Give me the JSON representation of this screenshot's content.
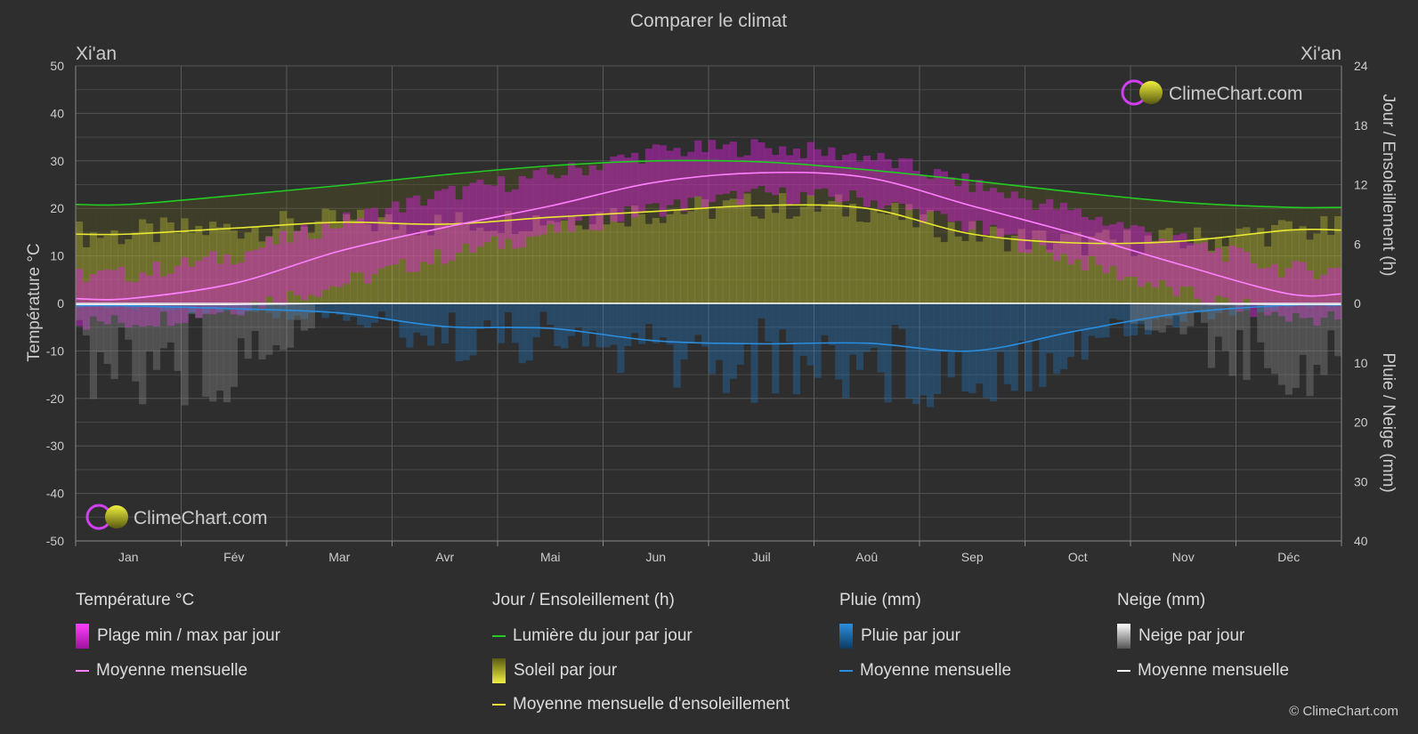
{
  "title": "Comparer le climat",
  "location_left": "Xi'an",
  "location_right": "Xi'an",
  "axes": {
    "left_label": "Température °C",
    "right_top_label": "Jour / Ensoleillement (h)",
    "right_bottom_label": "Pluie / Neige (mm)"
  },
  "watermark": "ClimeChart.com",
  "copyright": "© ClimeChart.com",
  "colors": {
    "background": "#2e2e2e",
    "temp_range": "#e020e0",
    "temp_mean": "#ff80ff",
    "daylight": "#22cc22",
    "sunshine": "#a8a830",
    "sunshine_mean": "#e8e830",
    "rain": "#1e78c8",
    "rain_mean": "#2a8ee0",
    "snow": "#909090",
    "snow_mean": "#ffffff",
    "watermark": "#2a9df4"
  },
  "legend": {
    "temp": {
      "title": "Température °C",
      "range": "Plage min / max par jour",
      "mean": "Moyenne mensuelle"
    },
    "sun": {
      "title": "Jour / Ensoleillement (h)",
      "daylight": "Lumière du jour par jour",
      "sunshine": "Soleil par jour",
      "sunshine_mean": "Moyenne mensuelle d'ensoleillement"
    },
    "rain": {
      "title": "Pluie (mm)",
      "daily": "Pluie par jour",
      "mean": "Moyenne mensuelle"
    },
    "snow": {
      "title": "Neige (mm)",
      "daily": "Neige par jour",
      "mean": "Moyenne mensuelle"
    }
  },
  "chart_data": {
    "type": "line",
    "title": "Comparer le climat",
    "months": [
      "Jan",
      "Fév",
      "Mar",
      "Avr",
      "Mai",
      "Jun",
      "Juil",
      "Aoû",
      "Sep",
      "Oct",
      "Nov",
      "Déc"
    ],
    "left_axis": {
      "label": "Température °C",
      "range": [
        -50,
        50
      ],
      "ticks": [
        50,
        40,
        30,
        20,
        10,
        0,
        -10,
        -20,
        -30,
        -40,
        -50
      ]
    },
    "right_axis_sun": {
      "label": "Jour / Ensoleillement (h)",
      "range": [
        0,
        24
      ],
      "ticks": [
        24,
        18,
        12,
        6,
        0
      ]
    },
    "right_axis_precip": {
      "label": "Pluie / Neige (mm)",
      "range": [
        0,
        40
      ],
      "ticks": [
        0,
        10,
        20,
        30,
        40
      ]
    },
    "grid": true,
    "series": [
      {
        "name": "Moyenne mensuelle",
        "unit": "°C",
        "values": [
          1.0,
          4.2,
          11.0,
          16.0,
          20.5,
          25.5,
          27.5,
          26.5,
          20.5,
          14.5,
          8.0,
          2.0
        ]
      },
      {
        "name": "Lumière du jour par jour",
        "unit": "h",
        "values": [
          10.0,
          10.9,
          11.9,
          13.0,
          13.9,
          14.4,
          14.3,
          13.5,
          12.4,
          11.2,
          10.2,
          9.7
        ]
      },
      {
        "name": "Moyenne mensuelle d'ensoleillement",
        "unit": "h",
        "values": [
          7.0,
          7.6,
          8.2,
          8.0,
          8.7,
          9.3,
          9.9,
          9.6,
          7.0,
          6.1,
          6.3,
          7.4
        ]
      },
      {
        "name": "Pluie moyenne mensuelle",
        "unit": "mm",
        "values": [
          0.4,
          0.9,
          1.6,
          3.9,
          4.2,
          6.3,
          6.8,
          6.7,
          8.0,
          4.6,
          1.6,
          0.3
        ]
      },
      {
        "name": "Neige moyenne mensuelle",
        "unit": "mm",
        "values": [
          0.2,
          0.2,
          0.0,
          0.0,
          0.0,
          0.0,
          0.0,
          0.0,
          0.0,
          0.0,
          0.1,
          0.2
        ]
      },
      {
        "name": "Plage min / max par jour",
        "unit": "°C",
        "min": [
          -4,
          -1,
          4,
          10,
          15,
          20,
          23,
          22,
          16,
          9,
          2,
          -3
        ],
        "max": [
          6,
          10,
          17,
          23,
          27,
          32,
          33,
          31,
          25,
          19,
          13,
          7
        ]
      }
    ]
  }
}
